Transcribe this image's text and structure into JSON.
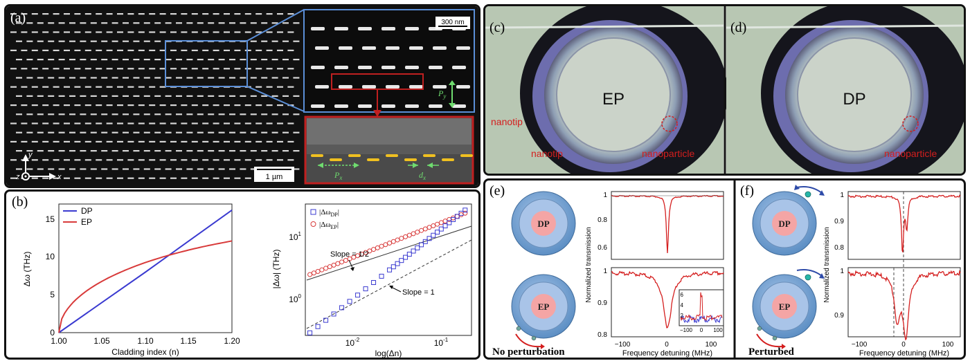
{
  "panels": {
    "a": {
      "label": "(a)",
      "scale_main": "1 µm",
      "scale_zoom": "300 nm",
      "axis_y": "y",
      "axis_x": "x",
      "axis_z": "z",
      "py": "P",
      "py_sub": "y",
      "px": "P",
      "px_sub": "x",
      "dx": "d",
      "dx_sub": "x"
    },
    "b": {
      "label": "(b)",
      "left_xlabel": "Cladding index (n)",
      "left_ylabel": "Δω (THz)",
      "left_legend": [
        "DP",
        "EP"
      ],
      "left_xticks": [
        "1.00",
        "1.05",
        "1.10",
        "1.15",
        "1.20"
      ],
      "left_yticks": [
        "0",
        "5",
        "10",
        "15"
      ],
      "right_xlabel": "log(Δn)",
      "right_ylabel": "|Δω| (THz)",
      "right_legend": [
        "|Δω",
        "DP",
        "|",
        "|Δω",
        "EP",
        "|"
      ],
      "right_xticks": [
        "10",
        "-2",
        "10",
        "-1"
      ],
      "right_yticks": [
        "10",
        "0",
        "10",
        "1"
      ],
      "slope_half": "Slope = 1/2",
      "slope_one": "Slope = 1"
    },
    "c": {
      "label": "(c)",
      "center": "EP",
      "nanotip1": "nanotip",
      "nanotip2": "nanotip",
      "nanoparticle": "nanoparticle"
    },
    "d": {
      "label": "(d)",
      "center": "DP",
      "nanoparticle": "nanoparticle"
    },
    "e": {
      "label": "(e)",
      "ring_top": "DP",
      "ring_bottom": "EP",
      "caption": "No perturbation",
      "ylabel": "Normalized transmission",
      "xlabel": "Frequency detuning (MHz)",
      "top_yticks": [
        "1",
        "0.8",
        "0.6"
      ],
      "bottom_yticks": [
        "1",
        "0.9",
        "0.8"
      ],
      "xticks": [
        "−100",
        "0",
        "100"
      ],
      "inset_yticks": [
        "6",
        "4",
        "2"
      ],
      "inset_xticks": [
        "−100",
        "0",
        "100"
      ]
    },
    "f": {
      "label": "(f)",
      "ring_top": "DP",
      "ring_bottom": "EP",
      "caption": "Perturbed",
      "ylabel": "Normalized transmission",
      "xlabel": "Frequency detuning (MHz)",
      "top_yticks": [
        "1",
        "0.9",
        "0.8"
      ],
      "bottom_yticks": [
        "1",
        "0.9"
      ],
      "xticks": [
        "−100",
        "0",
        "100"
      ]
    }
  },
  "colors": {
    "dp_line": "#3a3ad0",
    "ep_line": "#d83a3a",
    "ring_outer": "#6f9fd0",
    "ring_inner": "#a9c4e8",
    "core": "#f4a5a5",
    "accent_red": "#d41e1e"
  },
  "chart_data": [
    {
      "type": "line",
      "xlabel": "Cladding index (n)",
      "ylabel": "Δω (THz)",
      "xlim": [
        1.0,
        1.2
      ],
      "ylim": [
        0,
        17
      ],
      "series": [
        {
          "name": "DP",
          "x": [
            1.0,
            1.05,
            1.1,
            1.15,
            1.2
          ],
          "values": [
            0,
            4.0,
            8.0,
            12.1,
            16.2
          ]
        },
        {
          "name": "EP",
          "x": [
            1.0,
            1.01,
            1.05,
            1.1,
            1.15,
            1.2
          ],
          "values": [
            0,
            4.2,
            7.8,
            10.4,
            12.3,
            14.1
          ]
        }
      ],
      "legend": "top-left"
    },
    {
      "type": "scatter",
      "xlabel": "log(Δn)",
      "ylabel": "|Δω| (THz)",
      "xscale": "log",
      "yscale": "log",
      "xlim": [
        0.003,
        0.2
      ],
      "ylim": [
        0.3,
        20
      ],
      "series": [
        {
          "name": "|ΔωDP|",
          "x": [
            0.004,
            0.006,
            0.01,
            0.02,
            0.04,
            0.08,
            0.15
          ],
          "values": [
            0.4,
            0.6,
            1.0,
            2.0,
            4.0,
            8.0,
            15.0
          ]
        },
        {
          "name": "|ΔωEP|",
          "x": [
            0.004,
            0.006,
            0.01,
            0.02,
            0.04,
            0.08,
            0.15
          ],
          "values": [
            2.2,
            2.7,
            3.5,
            5.0,
            7.1,
            10.0,
            13.8
          ]
        }
      ],
      "annotations": [
        "Slope = 1/2",
        "Slope = 1"
      ],
      "legend": "top-left"
    }
  ]
}
